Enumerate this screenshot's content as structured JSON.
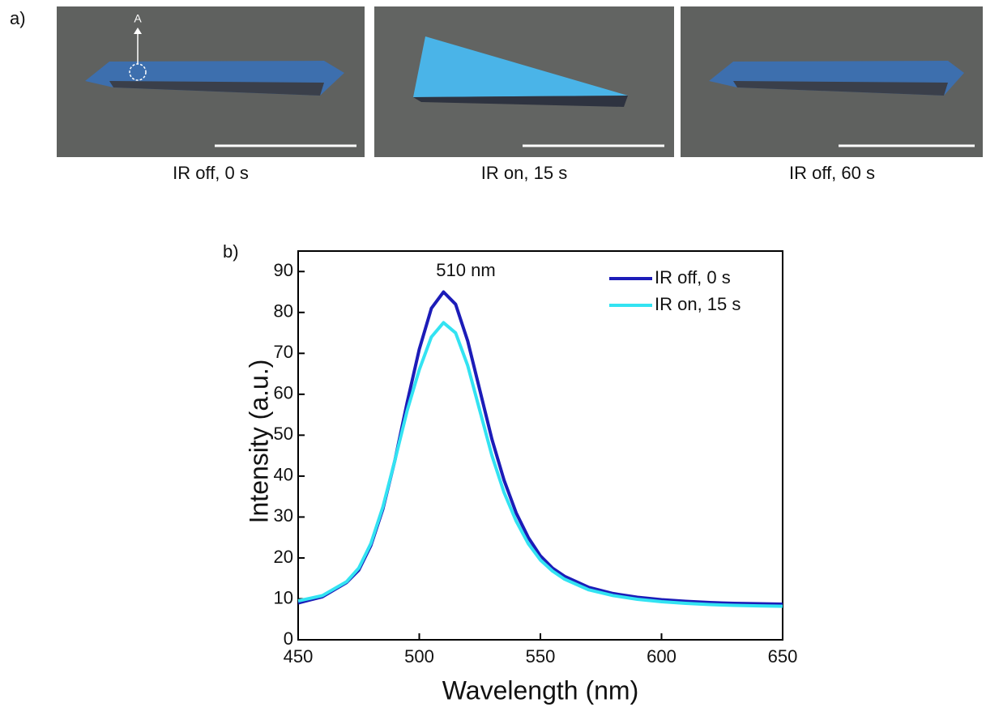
{
  "panel_a": {
    "label": "a)",
    "marker_label": "A",
    "captions": [
      "IR off, 0 s",
      "IR on, 15 s",
      "IR off, 60 s"
    ]
  },
  "chart_data": {
    "type": "line",
    "panel_label": "b)",
    "x_label": "Wavelength (nm)",
    "y_label": "Intensity (a.u.)",
    "annotation": "510 nm",
    "x": [
      450,
      460,
      470,
      475,
      480,
      485,
      490,
      495,
      500,
      505,
      510,
      515,
      520,
      525,
      530,
      535,
      540,
      545,
      550,
      555,
      560,
      570,
      580,
      590,
      600,
      610,
      620,
      630,
      640,
      650
    ],
    "series": [
      {
        "name": "IR off, 0 s",
        "color": "#1c1cb8",
        "values": [
          9,
          10.5,
          14,
          17,
          23,
          32,
          44,
          58,
          71,
          81,
          85,
          82,
          73,
          61,
          49,
          39,
          31,
          25,
          20.5,
          17.5,
          15.5,
          12.8,
          11.3,
          10.4,
          9.8,
          9.4,
          9.1,
          8.9,
          8.8,
          8.7
        ]
      },
      {
        "name": "IR on, 15 s",
        "color": "#33e3f2",
        "values": [
          9.5,
          10.8,
          14.2,
          17.5,
          23.5,
          32.5,
          44,
          56,
          66,
          74,
          77.5,
          75,
          67,
          56,
          45,
          36,
          29,
          23.5,
          19.5,
          16.8,
          14.8,
          12.2,
          10.8,
          9.9,
          9.3,
          8.9,
          8.6,
          8.4,
          8.3,
          8.2
        ]
      }
    ],
    "xlim": [
      450,
      650
    ],
    "ylim": [
      0,
      95
    ],
    "xticks": [
      450,
      500,
      550,
      600,
      650
    ],
    "yticks": [
      0,
      10,
      20,
      30,
      40,
      50,
      60,
      70,
      80,
      90
    ],
    "legend": "upper-right"
  }
}
